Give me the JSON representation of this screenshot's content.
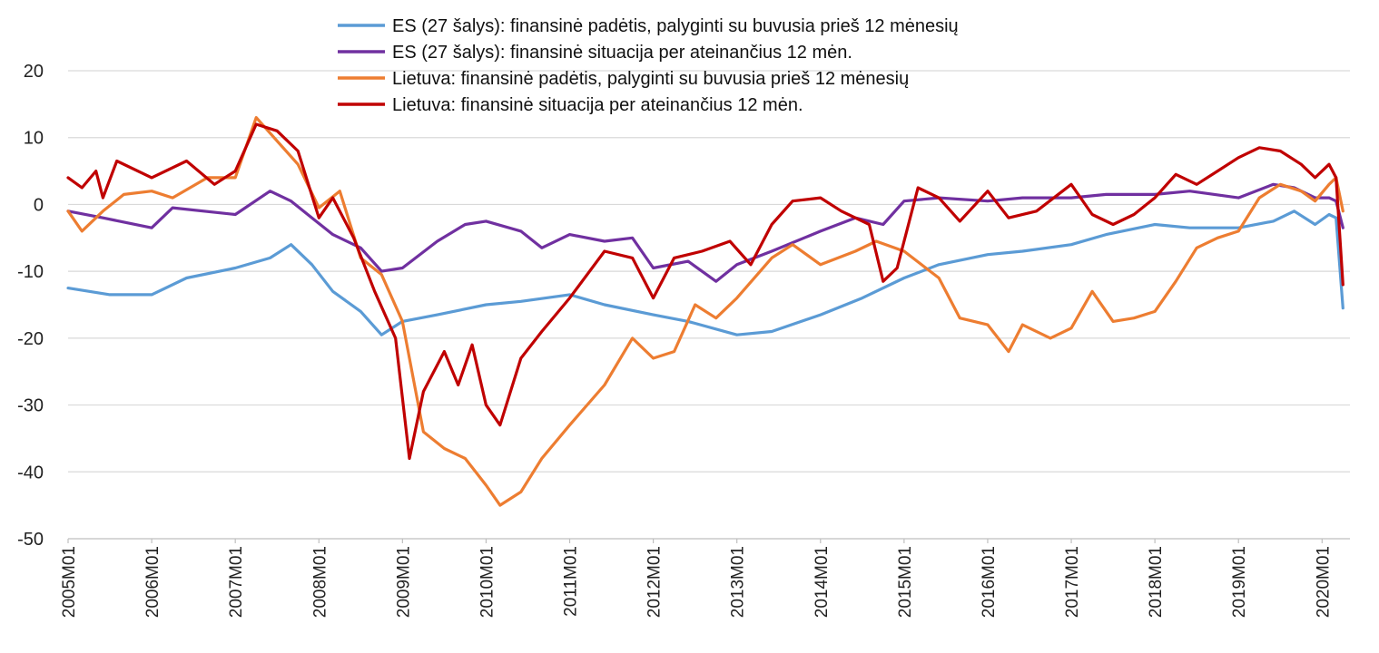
{
  "chart_data": {
    "type": "line",
    "title": "",
    "xlabel": "",
    "ylabel": "",
    "ylim": [
      -50,
      20
    ],
    "yticks": [
      20,
      10,
      0,
      -10,
      -20,
      -30,
      -40,
      -50
    ],
    "x_start": "2005M01",
    "x_end": "2020M05",
    "xtick_labels": [
      "2005M01",
      "2006M01",
      "2007M01",
      "2008M01",
      "2009M01",
      "2010M01",
      "2011M01",
      "2012M01",
      "2013M01",
      "2014M01",
      "2015M01",
      "2016M01",
      "2017M01",
      "2018M01",
      "2019M01",
      "2020M01"
    ],
    "grid": true,
    "legend_position": "top-center",
    "series": [
      {
        "name": "ES (27 šalys): finansinė padėtis, palyginti su buvusia prieš 12 mėnesių",
        "color": "#5b9bd5",
        "keypoints": [
          [
            "2005M01",
            -12.5
          ],
          [
            "2005M07",
            -13.5
          ],
          [
            "2006M01",
            -13.5
          ],
          [
            "2006M06",
            -11.0
          ],
          [
            "2007M01",
            -9.5
          ],
          [
            "2007M06",
            -8.0
          ],
          [
            "2007M09",
            -6.0
          ],
          [
            "2007M12",
            -9.0
          ],
          [
            "2008M03",
            -13.0
          ],
          [
            "2008M07",
            -16.0
          ],
          [
            "2008M10",
            -19.5
          ],
          [
            "2009M01",
            -17.5
          ],
          [
            "2009M06",
            -16.5
          ],
          [
            "2010M01",
            -15.0
          ],
          [
            "2010M06",
            -14.5
          ],
          [
            "2011M01",
            -13.5
          ],
          [
            "2011M06",
            -15.0
          ],
          [
            "2012M01",
            -16.5
          ],
          [
            "2012M06",
            -17.5
          ],
          [
            "2013M01",
            -19.5
          ],
          [
            "2013M06",
            -19.0
          ],
          [
            "2014M01",
            -16.5
          ],
          [
            "2014M07",
            -14.0
          ],
          [
            "2015M01",
            -11.0
          ],
          [
            "2015M06",
            -9.0
          ],
          [
            "2016M01",
            -7.5
          ],
          [
            "2016M06",
            -7.0
          ],
          [
            "2017M01",
            -6.0
          ],
          [
            "2017M06",
            -4.5
          ],
          [
            "2018M01",
            -3.0
          ],
          [
            "2018M06",
            -3.5
          ],
          [
            "2019M01",
            -3.5
          ],
          [
            "2019M06",
            -2.5
          ],
          [
            "2019M09",
            -1.0
          ],
          [
            "2019M12",
            -3.0
          ],
          [
            "2020M02",
            -1.5
          ],
          [
            "2020M03",
            -2.0
          ],
          [
            "2020M04",
            -15.5
          ]
        ]
      },
      {
        "name": "ES (27 šalys): finansinė situacija per ateinančius 12 mėn.",
        "color": "#7030a0",
        "keypoints": [
          [
            "2005M01",
            -1.0
          ],
          [
            "2005M06",
            -2.0
          ],
          [
            "2006M01",
            -3.5
          ],
          [
            "2006M04",
            -0.5
          ],
          [
            "2007M01",
            -1.5
          ],
          [
            "2007M06",
            2.0
          ],
          [
            "2007M09",
            0.5
          ],
          [
            "2007M12",
            -2.0
          ],
          [
            "2008M03",
            -4.5
          ],
          [
            "2008M07",
            -6.5
          ],
          [
            "2008M10",
            -10.0
          ],
          [
            "2009M01",
            -9.5
          ],
          [
            "2009M06",
            -5.5
          ],
          [
            "2009M10",
            -3.0
          ],
          [
            "2010M01",
            -2.5
          ],
          [
            "2010M06",
            -4.0
          ],
          [
            "2010M09",
            -6.5
          ],
          [
            "2011M01",
            -4.5
          ],
          [
            "2011M06",
            -5.5
          ],
          [
            "2011M10",
            -5.0
          ],
          [
            "2012M01",
            -9.5
          ],
          [
            "2012M06",
            -8.5
          ],
          [
            "2012M10",
            -11.5
          ],
          [
            "2013M01",
            -9.0
          ],
          [
            "2013M06",
            -7.0
          ],
          [
            "2014M01",
            -4.0
          ],
          [
            "2014M06",
            -2.0
          ],
          [
            "2014M10",
            -3.0
          ],
          [
            "2015M01",
            0.5
          ],
          [
            "2015M06",
            1.0
          ],
          [
            "2016M01",
            0.5
          ],
          [
            "2016M06",
            1.0
          ],
          [
            "2017M01",
            1.0
          ],
          [
            "2017M06",
            1.5
          ],
          [
            "2018M01",
            1.5
          ],
          [
            "2018M06",
            2.0
          ],
          [
            "2019M01",
            1.0
          ],
          [
            "2019M06",
            3.0
          ],
          [
            "2019M09",
            2.5
          ],
          [
            "2019M12",
            1.0
          ],
          [
            "2020M02",
            1.0
          ],
          [
            "2020M03",
            0.5
          ],
          [
            "2020M04",
            -3.5
          ]
        ]
      },
      {
        "name": "Lietuva: finansinė padėtis, palyginti su buvusia prieš 12 mėnesių",
        "color": "#ed7d31",
        "keypoints": [
          [
            "2005M01",
            -1.0
          ],
          [
            "2005M03",
            -4.0
          ],
          [
            "2005M06",
            -1.0
          ],
          [
            "2005M09",
            1.5
          ],
          [
            "2006M01",
            2.0
          ],
          [
            "2006M04",
            1.0
          ],
          [
            "2006M09",
            4.0
          ],
          [
            "2007M01",
            4.0
          ],
          [
            "2007M04",
            13.0
          ],
          [
            "2007M07",
            9.5
          ],
          [
            "2007M10",
            6.0
          ],
          [
            "2008M01",
            -0.5
          ],
          [
            "2008M04",
            2.0
          ],
          [
            "2008M07",
            -8.0
          ],
          [
            "2008M10",
            -10.5
          ],
          [
            "2009M01",
            -17.5
          ],
          [
            "2009M04",
            -34.0
          ],
          [
            "2009M07",
            -36.5
          ],
          [
            "2009M10",
            -38.0
          ],
          [
            "2010M01",
            -42.0
          ],
          [
            "2010M03",
            -45.0
          ],
          [
            "2010M06",
            -43.0
          ],
          [
            "2010M09",
            -38.0
          ],
          [
            "2011M01",
            -33.0
          ],
          [
            "2011M06",
            -27.0
          ],
          [
            "2011M10",
            -20.0
          ],
          [
            "2012M01",
            -23.0
          ],
          [
            "2012M04",
            -22.0
          ],
          [
            "2012M07",
            -15.0
          ],
          [
            "2012M10",
            -17.0
          ],
          [
            "2013M01",
            -14.0
          ],
          [
            "2013M06",
            -8.0
          ],
          [
            "2013M09",
            -6.0
          ],
          [
            "2014M01",
            -9.0
          ],
          [
            "2014M06",
            -7.0
          ],
          [
            "2014M09",
            -5.5
          ],
          [
            "2015M01",
            -7.0
          ],
          [
            "2015M06",
            -11.0
          ],
          [
            "2015M09",
            -17.0
          ],
          [
            "2016M01",
            -18.0
          ],
          [
            "2016M04",
            -22.0
          ],
          [
            "2016M06",
            -18.0
          ],
          [
            "2016M10",
            -20.0
          ],
          [
            "2017M01",
            -18.5
          ],
          [
            "2017M04",
            -13.0
          ],
          [
            "2017M07",
            -17.5
          ],
          [
            "2017M10",
            -17.0
          ],
          [
            "2018M01",
            -16.0
          ],
          [
            "2018M04",
            -11.5
          ],
          [
            "2018M07",
            -6.5
          ],
          [
            "2018M10",
            -5.0
          ],
          [
            "2019M01",
            -4.0
          ],
          [
            "2019M04",
            1.0
          ],
          [
            "2019M07",
            3.0
          ],
          [
            "2019M10",
            2.0
          ],
          [
            "2019M12",
            0.5
          ],
          [
            "2020M02",
            3.0
          ],
          [
            "2020M03",
            4.0
          ],
          [
            "2020M04",
            -1.0
          ]
        ]
      },
      {
        "name": "Lietuva: finansinė situacija per ateinančius 12 mėn.",
        "color": "#c00000",
        "keypoints": [
          [
            "2005M01",
            4.0
          ],
          [
            "2005M03",
            2.5
          ],
          [
            "2005M05",
            5.0
          ],
          [
            "2005M06",
            1.0
          ],
          [
            "2005M08",
            6.5
          ],
          [
            "2006M01",
            4.0
          ],
          [
            "2006M06",
            6.5
          ],
          [
            "2006M10",
            3.0
          ],
          [
            "2007M01",
            5.0
          ],
          [
            "2007M04",
            12.0
          ],
          [
            "2007M07",
            11.0
          ],
          [
            "2007M10",
            8.0
          ],
          [
            "2008M01",
            -2.0
          ],
          [
            "2008M03",
            1.0
          ],
          [
            "2008M06",
            -5.0
          ],
          [
            "2008M09",
            -13.0
          ],
          [
            "2008M12",
            -20.0
          ],
          [
            "2009M02",
            -38.0
          ],
          [
            "2009M04",
            -28.0
          ],
          [
            "2009M07",
            -22.0
          ],
          [
            "2009M09",
            -27.0
          ],
          [
            "2009M11",
            -21.0
          ],
          [
            "2010M01",
            -30.0
          ],
          [
            "2010M03",
            -33.0
          ],
          [
            "2010M06",
            -23.0
          ],
          [
            "2010M09",
            -19.0
          ],
          [
            "2011M01",
            -14.0
          ],
          [
            "2011M06",
            -7.0
          ],
          [
            "2011M10",
            -8.0
          ],
          [
            "2012M01",
            -14.0
          ],
          [
            "2012M04",
            -8.0
          ],
          [
            "2012M08",
            -7.0
          ],
          [
            "2012M12",
            -5.5
          ],
          [
            "2013M03",
            -9.0
          ],
          [
            "2013M06",
            -3.0
          ],
          [
            "2013M09",
            0.5
          ],
          [
            "2014M01",
            1.0
          ],
          [
            "2014M04",
            -1.0
          ],
          [
            "2014M08",
            -3.0
          ],
          [
            "2014M10",
            -11.5
          ],
          [
            "2014M12",
            -9.5
          ],
          [
            "2015M03",
            2.5
          ],
          [
            "2015M06",
            1.0
          ],
          [
            "2015M09",
            -2.5
          ],
          [
            "2016M01",
            2.0
          ],
          [
            "2016M04",
            -2.0
          ],
          [
            "2016M08",
            -1.0
          ],
          [
            "2017M01",
            3.0
          ],
          [
            "2017M04",
            -1.5
          ],
          [
            "2017M07",
            -3.0
          ],
          [
            "2017M10",
            -1.5
          ],
          [
            "2018M01",
            1.0
          ],
          [
            "2018M04",
            4.5
          ],
          [
            "2018M07",
            3.0
          ],
          [
            "2018M10",
            5.0
          ],
          [
            "2019M01",
            7.0
          ],
          [
            "2019M04",
            8.5
          ],
          [
            "2019M07",
            8.0
          ],
          [
            "2019M10",
            6.0
          ],
          [
            "2019M12",
            4.0
          ],
          [
            "2020M02",
            6.0
          ],
          [
            "2020M03",
            4.0
          ],
          [
            "2020M04",
            -12.0
          ]
        ]
      }
    ]
  }
}
